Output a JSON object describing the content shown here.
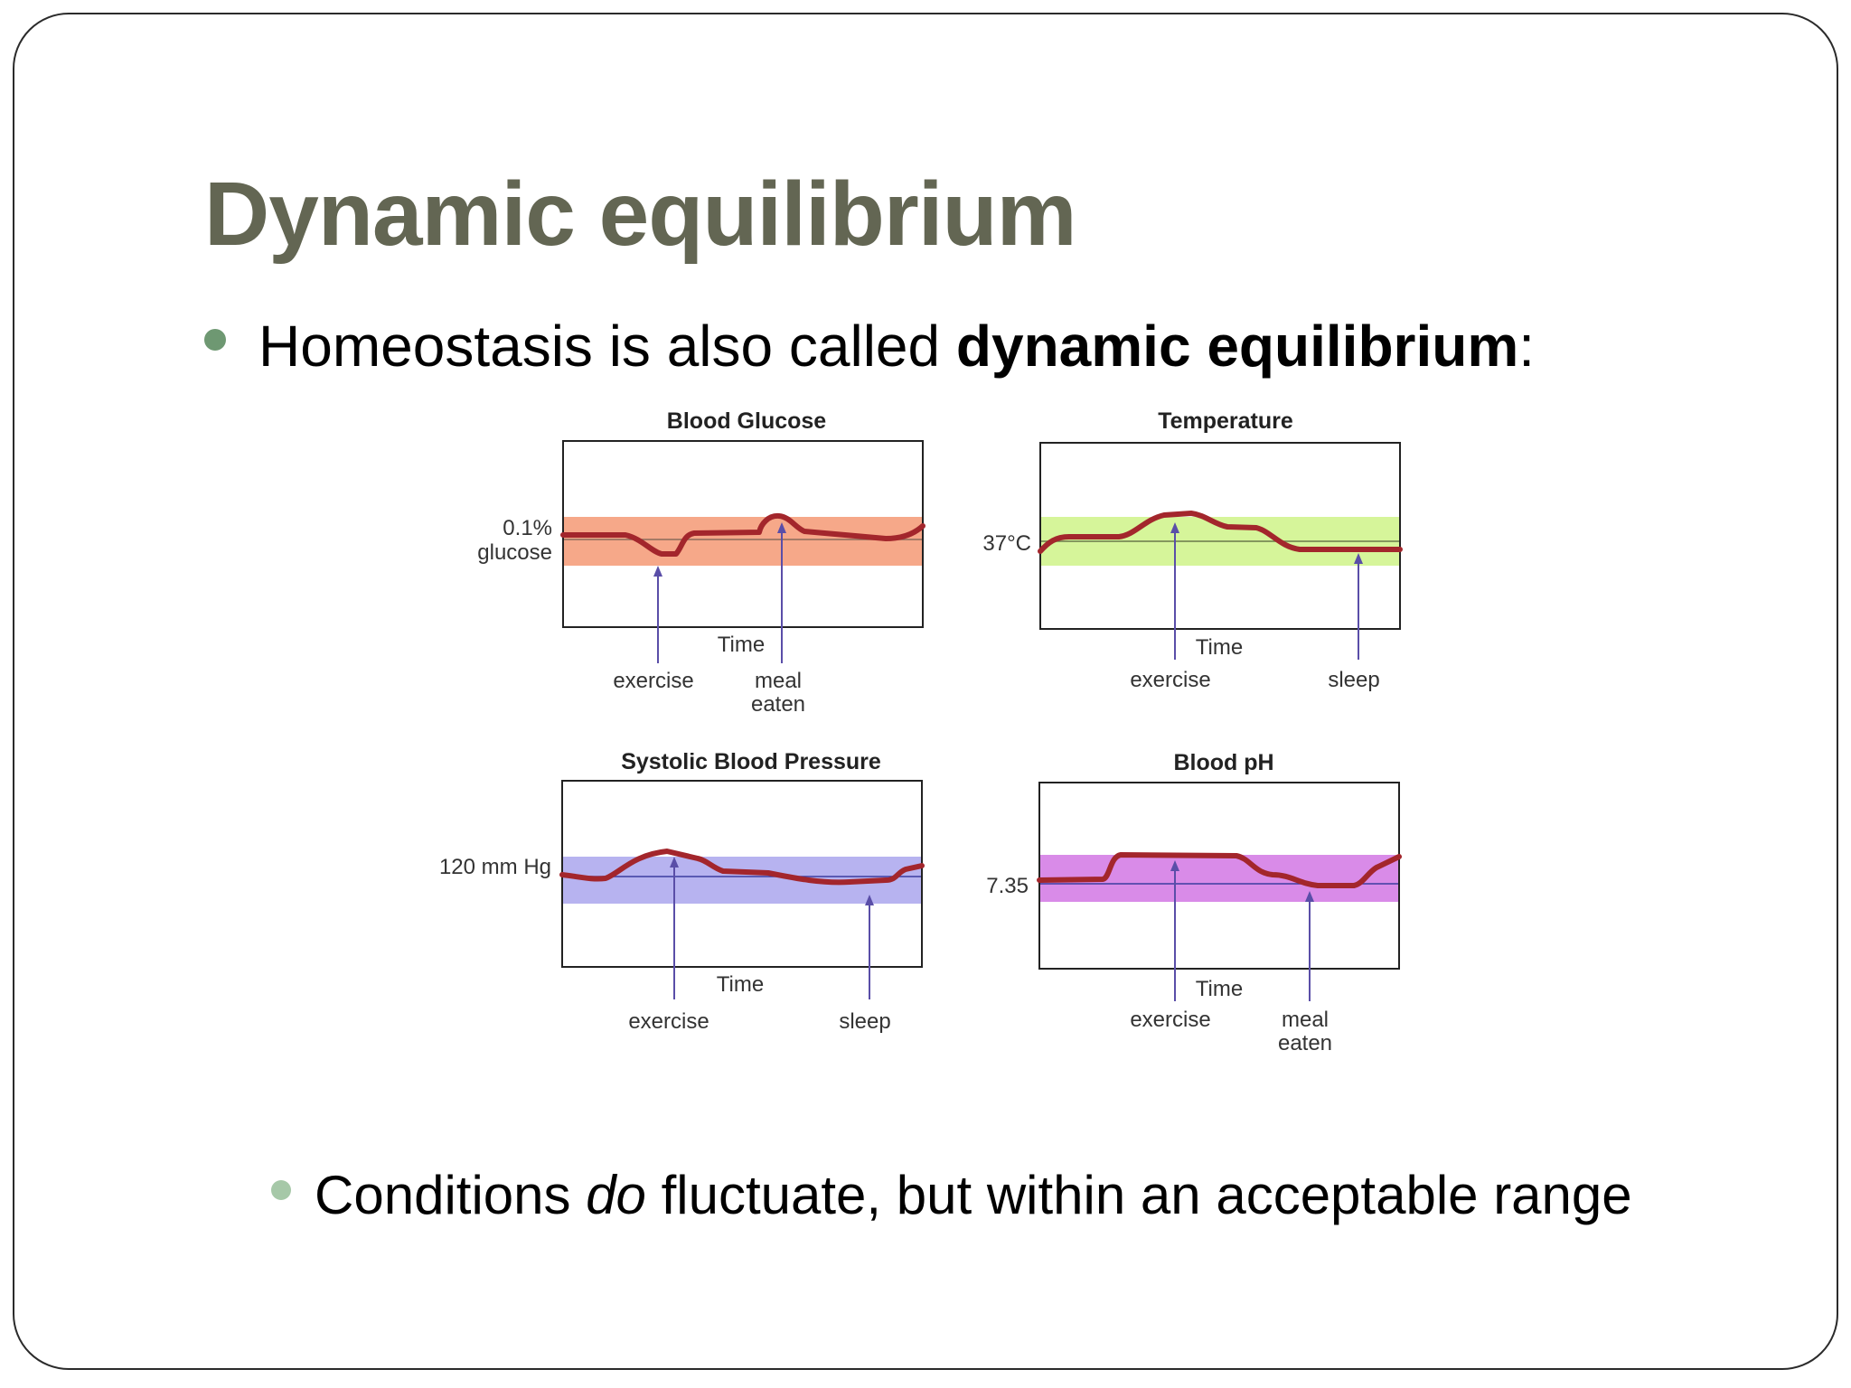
{
  "slide": {
    "title": "Dynamic equilibrium",
    "bullet1": {
      "prefix": "Homeostasis is also called ",
      "bold": "dynamic equilibrium",
      "suffix": ":"
    },
    "bullet2": {
      "prefix": "Conditions ",
      "italic": "do",
      "suffix": " fluctuate, but within an acceptable range"
    }
  },
  "colors": {
    "title": "#636653",
    "bullet1_dot": "#6e9872",
    "bullet2_dot": "#a6c8a8",
    "curve": "#a3262c",
    "arrow": "#5a4ea8"
  },
  "panels": [
    {
      "title": "Blood Glucose",
      "ylabel": [
        "0.1%",
        "glucose"
      ],
      "xlabel": "Time",
      "band_color": "#f6a889",
      "events": [
        {
          "label": [
            "exercise"
          ]
        },
        {
          "label": [
            "meal",
            "eaten"
          ]
        }
      ]
    },
    {
      "title": "Temperature",
      "ylabel": [
        "37°C"
      ],
      "xlabel": "Time",
      "band_color": "#d6f59a",
      "events": [
        {
          "label": [
            "exercise"
          ]
        },
        {
          "label": [
            "sleep"
          ]
        }
      ]
    },
    {
      "title": "Systolic Blood Pressure",
      "ylabel": [
        "120 mm Hg"
      ],
      "xlabel": "Time",
      "band_color": "#b7b3f0",
      "events": [
        {
          "label": [
            "exercise"
          ]
        },
        {
          "label": [
            "sleep"
          ]
        }
      ]
    },
    {
      "title": "Blood pH",
      "ylabel": [
        "7.35"
      ],
      "xlabel": "Time",
      "band_color": "#d98be8",
      "events": [
        {
          "label": [
            "exercise"
          ]
        },
        {
          "label": [
            "meal",
            "eaten"
          ]
        }
      ]
    }
  ]
}
